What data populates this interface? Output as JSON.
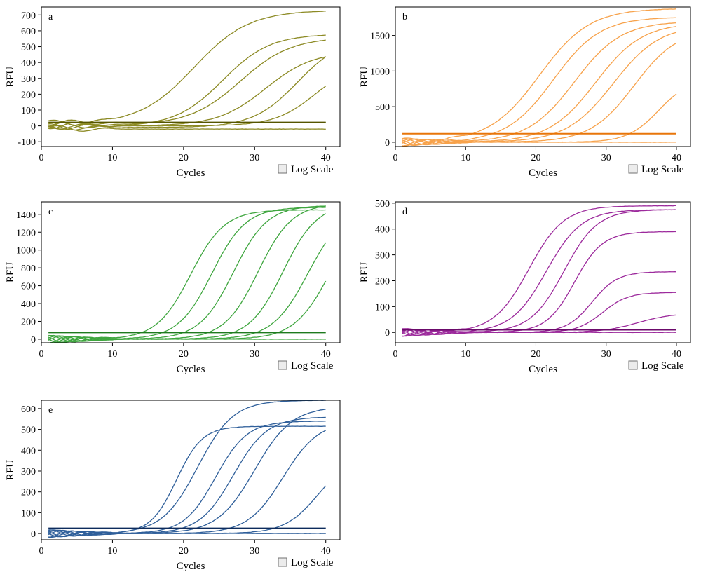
{
  "log_scale_label": "Log Scale",
  "chart_data": [
    {
      "type": "line",
      "panel": "a",
      "xlabel": "Cycles",
      "ylabel": "RFU",
      "xlim": [
        0,
        42
      ],
      "ylim": [
        -130,
        750
      ],
      "xticks": [
        0,
        10,
        20,
        30,
        40
      ],
      "yticks": [
        -100,
        0,
        100,
        200,
        300,
        400,
        500,
        600,
        700
      ],
      "color": "#8c8a24",
      "threshold": {
        "value": 22,
        "color": "#555500"
      },
      "grid": false,
      "log_scale_checked": false,
      "curves": [
        {
          "base": 10,
          "plateau": 730,
          "ct": 21.5,
          "k": 0.26
        },
        {
          "base": -5,
          "plateau": 580,
          "ct": 25.5,
          "k": 0.3
        },
        {
          "base": 5,
          "plateau": 560,
          "ct": 28.0,
          "k": 0.28
        },
        {
          "base": 0,
          "plateau": 470,
          "ct": 31.5,
          "k": 0.3
        },
        {
          "base": -10,
          "plateau": 560,
          "ct": 36.0,
          "k": 0.32
        },
        {
          "base": 0,
          "plateau": 400,
          "ct": 38.5,
          "k": 0.35
        },
        {
          "base": 20,
          "plateau": 20,
          "ct": 99,
          "k": 0.3
        },
        {
          "base": -20,
          "plateau": -20,
          "ct": 99,
          "k": 0.3
        }
      ]
    },
    {
      "type": "line",
      "panel": "b",
      "xlabel": "Cycles",
      "ylabel": "RFU",
      "xlim": [
        0,
        42
      ],
      "ylim": [
        -60,
        1900
      ],
      "xticks": [
        0,
        10,
        20,
        30,
        40
      ],
      "yticks": [
        0,
        500,
        1000,
        1500
      ],
      "color": "#f7a24b",
      "threshold": {
        "value": 120,
        "color": "#e8760a"
      },
      "grid": false,
      "log_scale_checked": false,
      "curves": [
        {
          "base": 0,
          "plateau": 1880,
          "ct": 20.5,
          "k": 0.28
        },
        {
          "base": 0,
          "plateau": 1760,
          "ct": 22.5,
          "k": 0.3
        },
        {
          "base": 0,
          "plateau": 1700,
          "ct": 25.5,
          "k": 0.3
        },
        {
          "base": 0,
          "plateau": 1680,
          "ct": 28.5,
          "k": 0.3
        },
        {
          "base": 0,
          "plateau": 1650,
          "ct": 31.0,
          "k": 0.3
        },
        {
          "base": 0,
          "plateau": 1600,
          "ct": 34.0,
          "k": 0.32
        },
        {
          "base": 0,
          "plateau": 900,
          "ct": 37.5,
          "k": 0.45
        },
        {
          "base": 0,
          "plateau": 0,
          "ct": 99,
          "k": 0.3
        }
      ]
    },
    {
      "type": "line",
      "panel": "c",
      "xlabel": "Cycles",
      "ylabel": "RFU",
      "xlim": [
        0,
        42
      ],
      "ylim": [
        -40,
        1540
      ],
      "xticks": [
        0,
        10,
        20,
        30,
        40
      ],
      "yticks": [
        0,
        200,
        400,
        600,
        800,
        1000,
        1200,
        1400
      ],
      "color": "#3fa63f",
      "threshold": {
        "value": 75,
        "color": "#1e7a1e"
      },
      "grid": false,
      "log_scale_checked": false,
      "curves": [
        {
          "base": 0,
          "plateau": 1450,
          "ct": 21.0,
          "k": 0.42
        },
        {
          "base": 0,
          "plateau": 1480,
          "ct": 24.0,
          "k": 0.42
        },
        {
          "base": 0,
          "plateau": 1500,
          "ct": 27.0,
          "k": 0.42
        },
        {
          "base": 0,
          "plateau": 1520,
          "ct": 30.5,
          "k": 0.42
        },
        {
          "base": 0,
          "plateau": 1520,
          "ct": 34.0,
          "k": 0.42
        },
        {
          "base": 0,
          "plateau": 1480,
          "ct": 37.5,
          "k": 0.4
        },
        {
          "base": 0,
          "plateau": 1450,
          "ct": 40.5,
          "k": 0.4
        },
        {
          "base": 0,
          "plateau": 0,
          "ct": 99,
          "k": 0.3
        }
      ]
    },
    {
      "type": "line",
      "panel": "d",
      "xlabel": "Cycles",
      "ylabel": "RFU",
      "xlim": [
        0,
        42
      ],
      "ylim": [
        -40,
        505
      ],
      "xticks": [
        0,
        10,
        20,
        30,
        40
      ],
      "yticks": [
        0,
        100,
        200,
        300,
        400,
        500
      ],
      "color": "#9c2a9c",
      "threshold": {
        "value": 10,
        "color": "#6b0a6b"
      },
      "grid": false,
      "log_scale_checked": false,
      "curves": [
        {
          "base": 0,
          "plateau": 490,
          "ct": 19.0,
          "k": 0.4
        },
        {
          "base": 0,
          "plateau": 475,
          "ct": 21.5,
          "k": 0.4
        },
        {
          "base": 0,
          "plateau": 475,
          "ct": 24.0,
          "k": 0.42
        },
        {
          "base": 0,
          "plateau": 390,
          "ct": 25.5,
          "k": 0.5
        },
        {
          "base": 0,
          "plateau": 235,
          "ct": 28.0,
          "k": 0.55
        },
        {
          "base": 0,
          "plateau": 155,
          "ct": 29.5,
          "k": 0.55
        },
        {
          "base": 0,
          "plateau": 75,
          "ct": 34.5,
          "k": 0.4
        },
        {
          "base": 0,
          "plateau": 0,
          "ct": 99,
          "k": 0.3
        }
      ]
    },
    {
      "type": "line",
      "panel": "e",
      "xlabel": "Cycles",
      "ylabel": "RFU",
      "xlim": [
        0,
        42
      ],
      "ylim": [
        -30,
        640
      ],
      "xticks": [
        0,
        10,
        20,
        30,
        40
      ],
      "yticks": [
        0,
        100,
        200,
        300,
        400,
        500,
        600
      ],
      "color": "#2f5f9a",
      "threshold": {
        "value": 25,
        "color": "#0d2b5c"
      },
      "grid": false,
      "log_scale_checked": false,
      "curves": [
        {
          "base": 0,
          "plateau": 515,
          "ct": 19.0,
          "k": 0.55
        },
        {
          "base": 0,
          "plateau": 640,
          "ct": 22.0,
          "k": 0.4
        },
        {
          "base": 0,
          "plateau": 540,
          "ct": 24.5,
          "k": 0.45
        },
        {
          "base": 0,
          "plateau": 560,
          "ct": 27.0,
          "k": 0.42
        },
        {
          "base": 0,
          "plateau": 610,
          "ct": 30.0,
          "k": 0.38
        },
        {
          "base": 0,
          "plateau": 540,
          "ct": 34.0,
          "k": 0.4
        },
        {
          "base": 0,
          "plateau": 380,
          "ct": 39.0,
          "k": 0.42
        },
        {
          "base": 0,
          "plateau": 0,
          "ct": 99,
          "k": 0.3
        }
      ]
    }
  ]
}
